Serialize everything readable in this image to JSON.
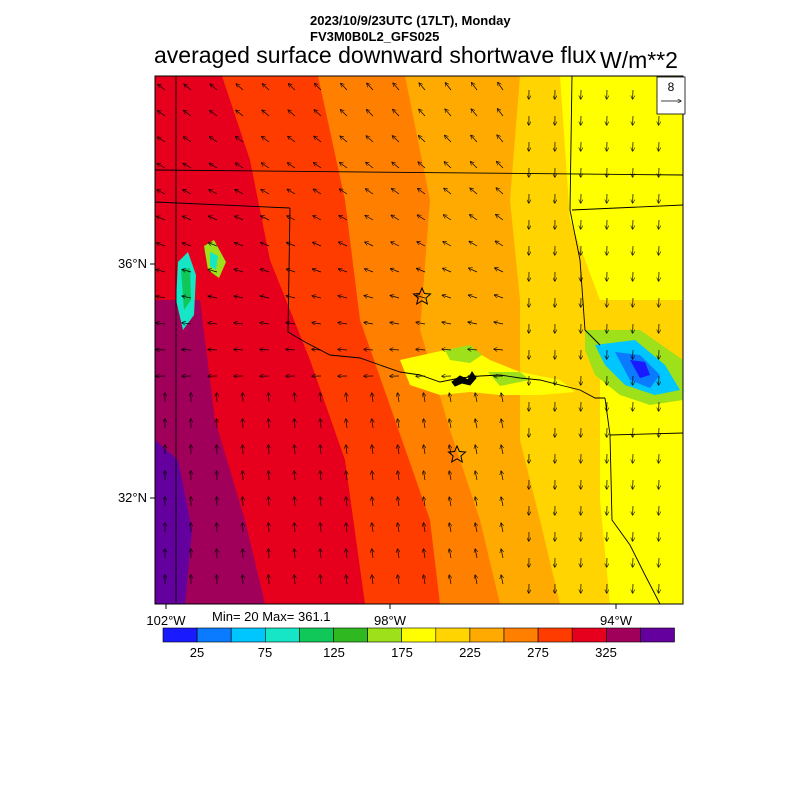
{
  "header": {
    "datetime": "2023/10/9/23UTC (17LT), Monday",
    "model": "FV3M0B0L2_GFS025",
    "title": "averaged surface downward shortwave flux",
    "units": "W/m**2"
  },
  "map": {
    "lat_labels": [
      "36°N",
      "32°N"
    ],
    "lon_labels": [
      "102°W",
      "98°W",
      "94°W"
    ],
    "reference_vector": "8",
    "markers": [
      "star-oklahoma-city",
      "star-dallas-fort-worth"
    ]
  },
  "stats": "Min= 20 Max= 361.1",
  "colorbar": {
    "colors": [
      "#1a1aff",
      "#0a7aff",
      "#00c6ff",
      "#16e6c6",
      "#10c85a",
      "#30b820",
      "#9ee01a",
      "#ffff00",
      "#ffd400",
      "#ffaa00",
      "#ff7f00",
      "#ff3c00",
      "#e6001e",
      "#a0005a",
      "#64009e"
    ],
    "labels": [
      "25",
      "75",
      "125",
      "175",
      "225",
      "275",
      "325"
    ]
  },
  "chart_data": {
    "type": "heatmap",
    "variable": "averaged surface downward shortwave flux",
    "units": "W/m**2",
    "min": 20,
    "max": 361.1,
    "lat_ticks": [
      "36°N",
      "32°N"
    ],
    "lon_ticks": [
      "102°W",
      "98°W",
      "94°W"
    ],
    "color_levels": [
      25,
      75,
      125,
      175,
      225,
      275,
      325
    ]
  }
}
